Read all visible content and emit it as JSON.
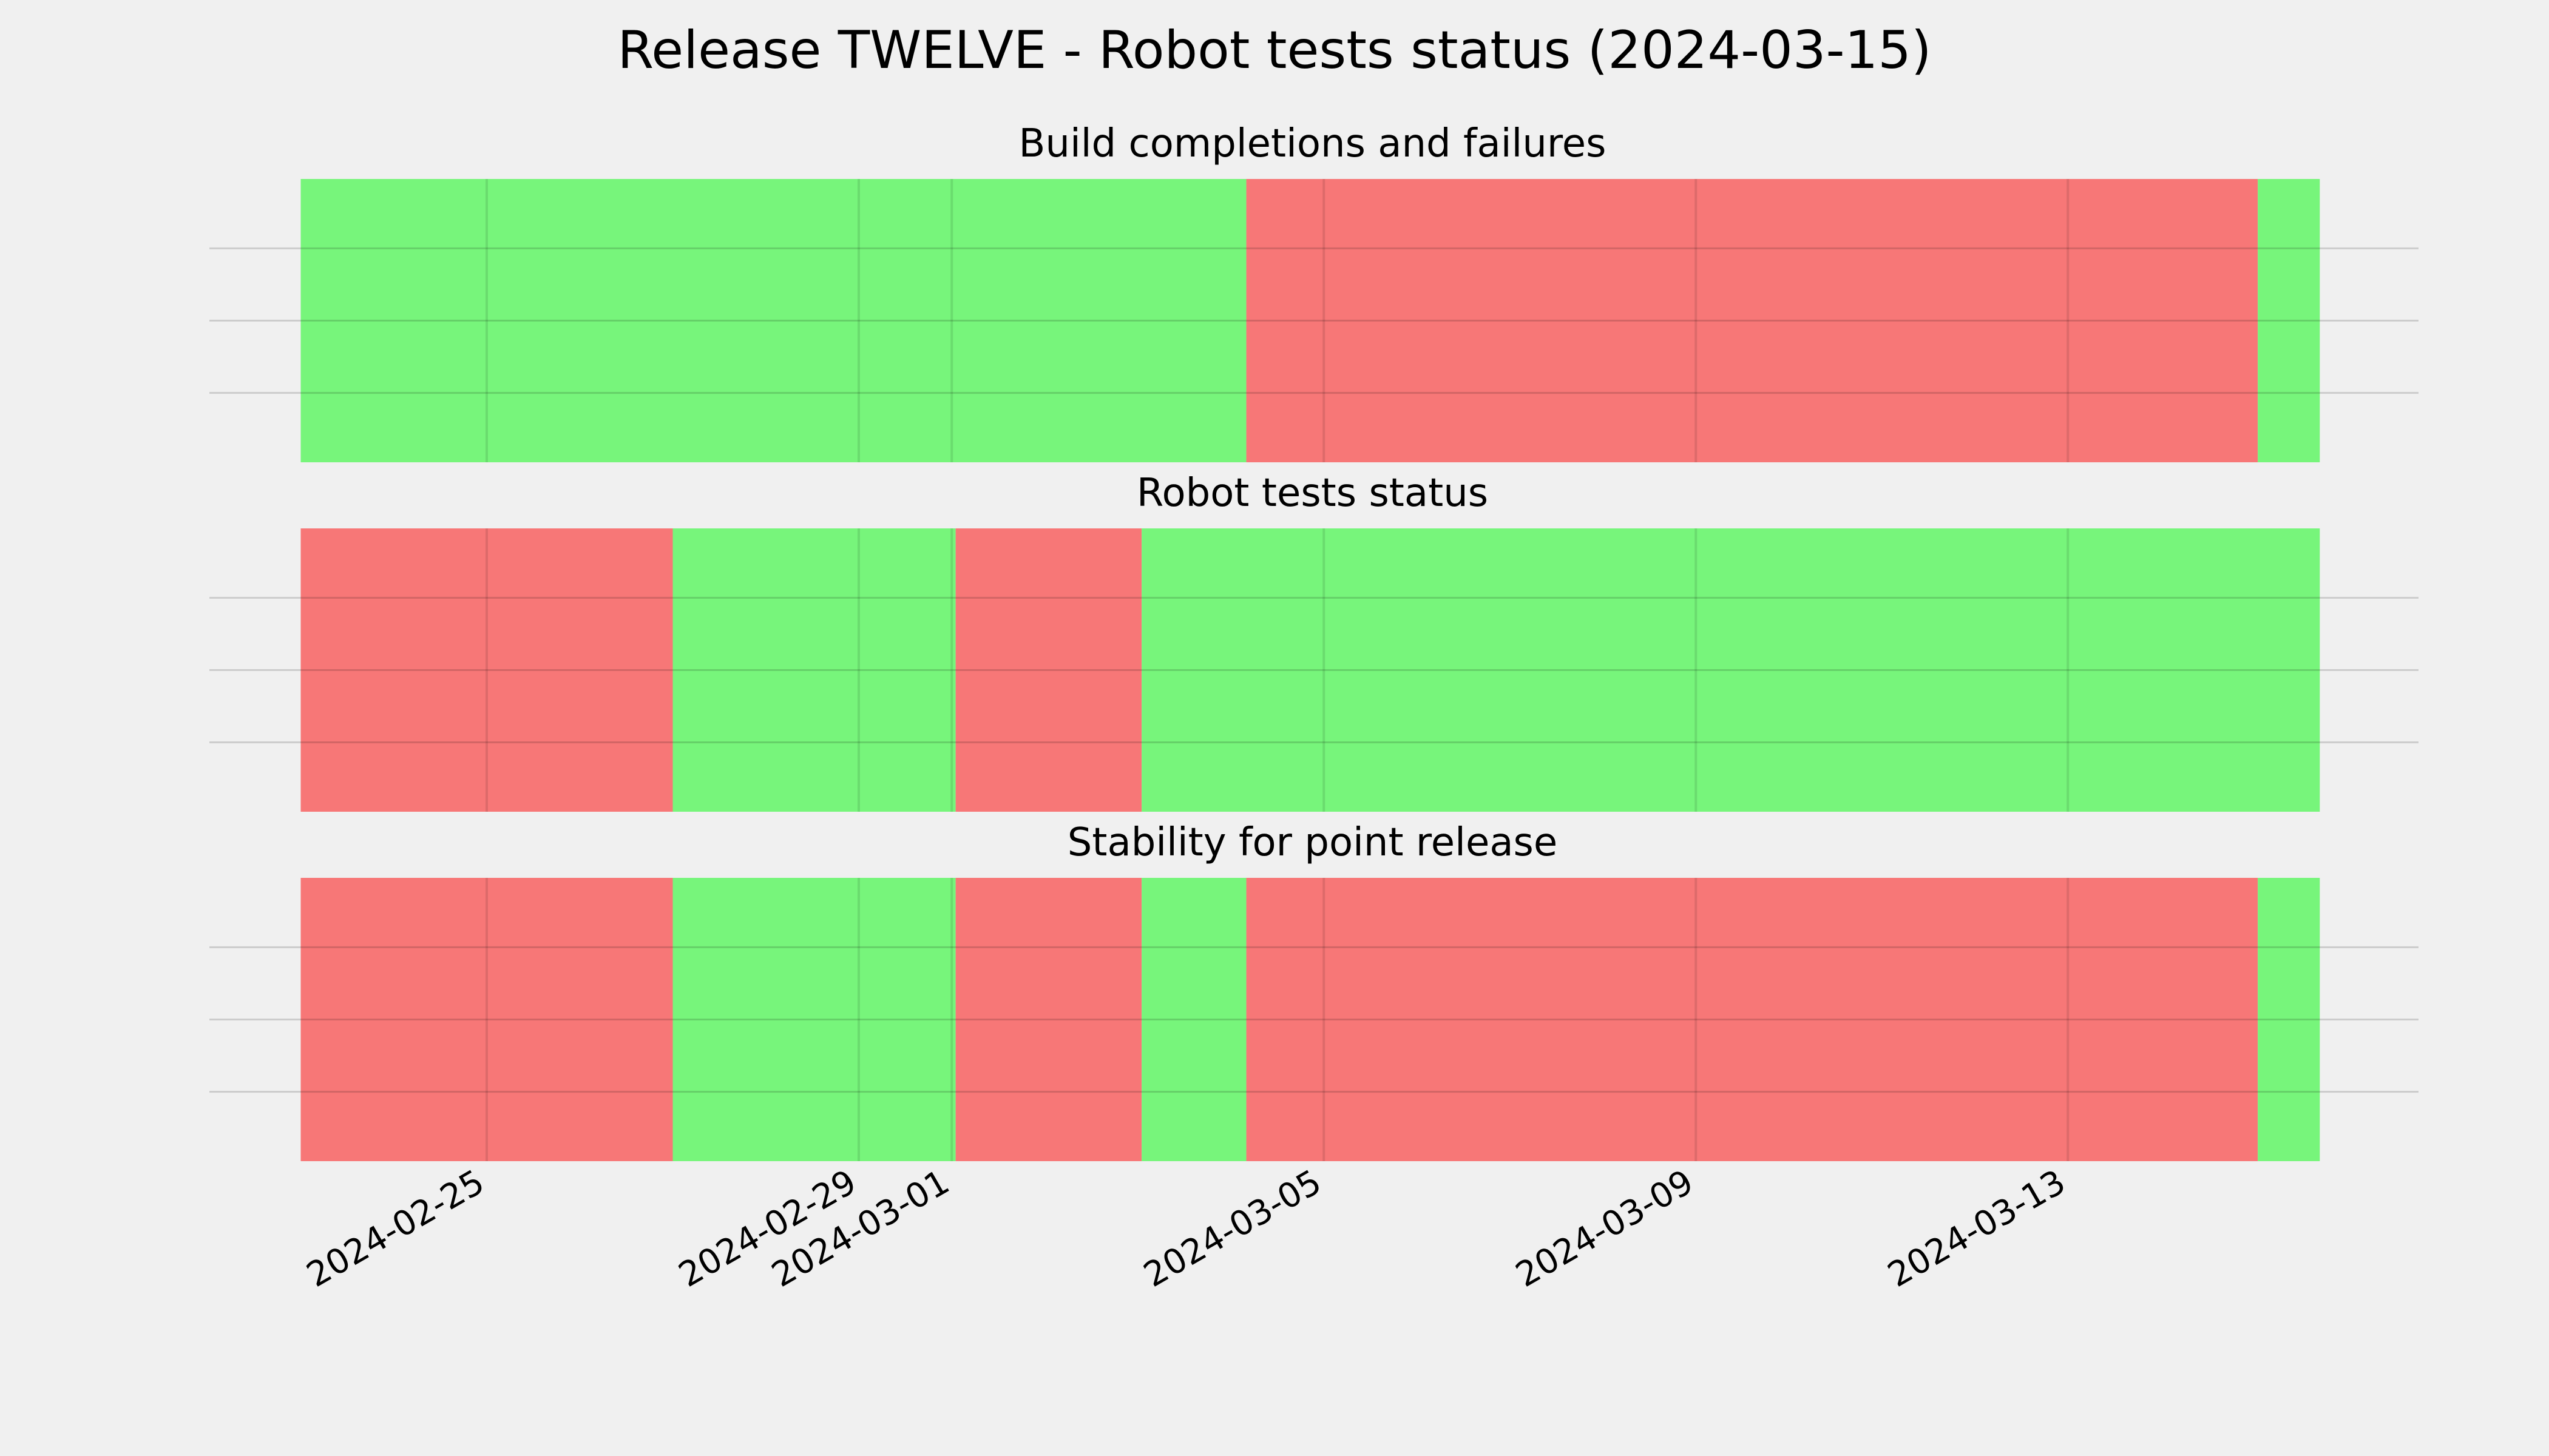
{
  "chart_data": {
    "type": "timeline",
    "title": "Release TWELVE - Robot tests status (2024-03-15)",
    "x_range": [
      "2024-02-22",
      "2024-03-16"
    ],
    "x_ticks": [
      "2024-02-25",
      "2024-02-29",
      "2024-03-01",
      "2024-03-05",
      "2024-03-09",
      "2024-03-13"
    ],
    "grid": true,
    "colors": {
      "pass": "#77f57b",
      "fail": "#f77777"
    },
    "panels": [
      {
        "title": "Build completions and failures",
        "segments": [
          {
            "start": "2024-02-23",
            "end": "2024-03-04 04:00",
            "status": "pass"
          },
          {
            "start": "2024-03-04 04:00",
            "end": "2024-03-15 01:00",
            "status": "fail"
          },
          {
            "start": "2024-03-15 01:00",
            "end": "2024-03-15 17:00",
            "status": "pass"
          }
        ]
      },
      {
        "title": "Robot tests status",
        "segments": [
          {
            "start": "2024-02-23",
            "end": "2024-02-27",
            "status": "fail"
          },
          {
            "start": "2024-02-27",
            "end": "2024-03-01 01:00",
            "status": "pass"
          },
          {
            "start": "2024-03-01 01:00",
            "end": "2024-03-03 01:00",
            "status": "fail"
          },
          {
            "start": "2024-03-03 01:00",
            "end": "2024-03-15 17:00",
            "status": "pass"
          }
        ]
      },
      {
        "title": "Stability for point release",
        "segments": [
          {
            "start": "2024-02-23",
            "end": "2024-02-27",
            "status": "fail"
          },
          {
            "start": "2024-02-27",
            "end": "2024-03-01 01:00",
            "status": "pass"
          },
          {
            "start": "2024-03-01 01:00",
            "end": "2024-03-03 01:00",
            "status": "fail"
          },
          {
            "start": "2024-03-03 01:00",
            "end": "2024-03-04 04:00",
            "status": "pass"
          },
          {
            "start": "2024-03-04 04:00",
            "end": "2024-03-15 01:00",
            "status": "fail"
          },
          {
            "start": "2024-03-15 01:00",
            "end": "2024-03-15 17:00",
            "status": "pass"
          }
        ]
      }
    ]
  }
}
